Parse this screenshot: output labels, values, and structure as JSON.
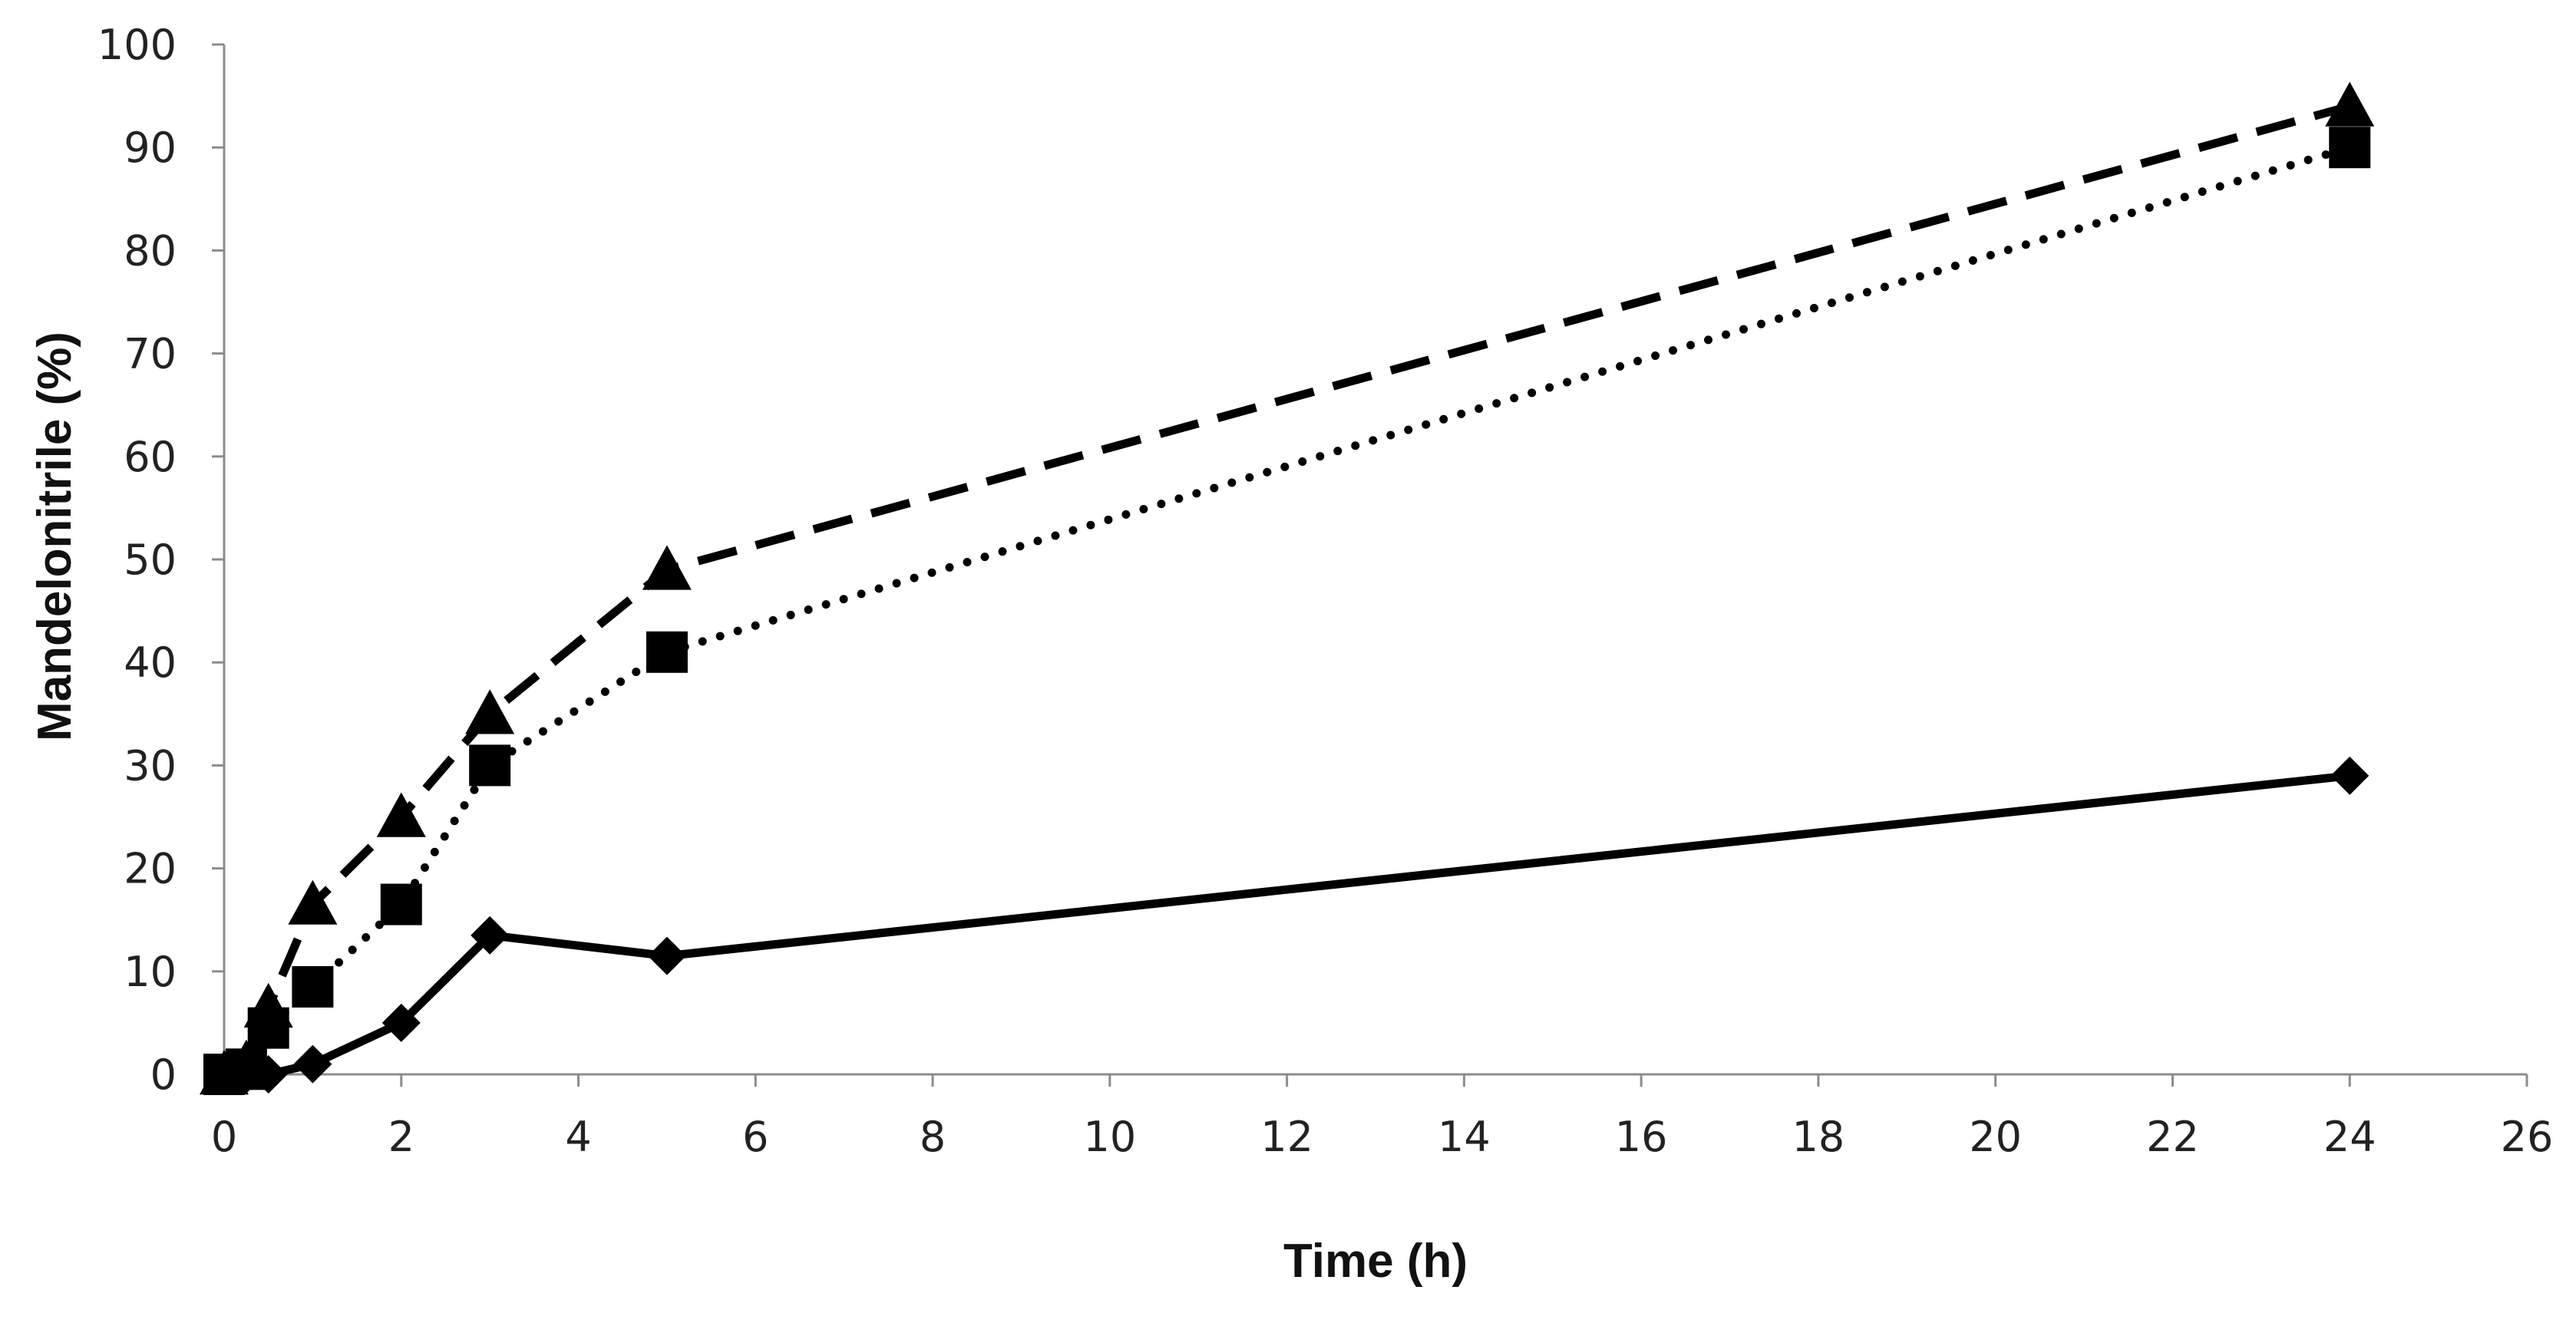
{
  "chart_data": {
    "type": "line",
    "title": "",
    "xlabel": "Time (h)",
    "ylabel": "Mandelonitrile (%)",
    "xlim": [
      0,
      26
    ],
    "ylim": [
      0,
      100
    ],
    "xticks": [
      0,
      2,
      4,
      6,
      8,
      10,
      12,
      14,
      16,
      18,
      20,
      22,
      24,
      26
    ],
    "yticks": [
      0,
      10,
      20,
      30,
      40,
      50,
      60,
      70,
      80,
      90,
      100
    ],
    "grid": false,
    "legend": "none",
    "series": [
      {
        "name": "series-diamond-solid",
        "marker": "diamond",
        "line_style": "solid",
        "x": [
          0,
          0.25,
          0.5,
          1,
          2,
          3,
          5,
          24
        ],
        "y": [
          0,
          0,
          0,
          1,
          5,
          13.5,
          11.5,
          29
        ]
      },
      {
        "name": "series-square-dotted",
        "marker": "square",
        "line_style": "dotted",
        "x": [
          0,
          0.25,
          0.5,
          1,
          2,
          3,
          5,
          24
        ],
        "y": [
          0,
          0.5,
          4.5,
          8.5,
          16.5,
          30,
          41,
          90
        ]
      },
      {
        "name": "series-triangle-dashed",
        "marker": "triangle",
        "line_style": "dashed",
        "x": [
          0,
          0.25,
          0.5,
          1,
          2,
          3,
          5,
          24
        ],
        "y": [
          0,
          1,
          6.5,
          16.5,
          25,
          35,
          49,
          94
        ]
      }
    ],
    "colors": {
      "line": "#000000",
      "axis": "#8c8c8c",
      "text": "#222222"
    }
  }
}
